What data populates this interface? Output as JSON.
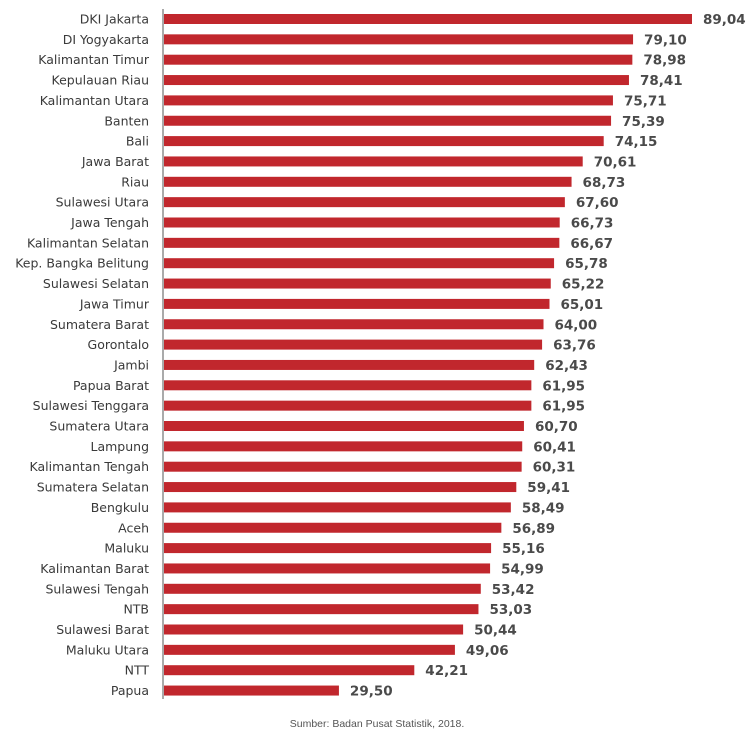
{
  "chart_data": {
    "type": "bar",
    "orientation": "horizontal",
    "categories": [
      "DKI Jakarta",
      "DI Yogyakarta",
      "Kalimantan Timur",
      "Kepulauan Riau",
      "Kalimantan Utara",
      "Banten",
      "Bali",
      "Jawa Barat",
      "Riau",
      "Sulawesi Utara",
      "Jawa Tengah",
      "Kalimantan Selatan",
      "Kep. Bangka Belitung",
      "Sulawesi Selatan",
      "Jawa Timur",
      "Sumatera Barat",
      "Gorontalo",
      "Jambi",
      "Papua Barat",
      "Sulawesi Tenggara",
      "Sumatera Utara",
      "Lampung",
      "Kalimantan Tengah",
      "Sumatera Selatan",
      "Bengkulu",
      "Aceh",
      "Maluku",
      "Kalimantan Barat",
      "Sulawesi Tengah",
      "NTB",
      "Sulawesi Barat",
      "Maluku Utara",
      "NTT",
      "Papua"
    ],
    "values": [
      89.04,
      79.1,
      78.98,
      78.41,
      75.71,
      75.39,
      74.15,
      70.61,
      68.73,
      67.6,
      66.73,
      66.67,
      65.78,
      65.22,
      65.01,
      64.0,
      63.76,
      62.43,
      61.95,
      61.95,
      60.7,
      60.41,
      60.31,
      59.41,
      58.49,
      56.89,
      55.16,
      54.99,
      53.42,
      53.03,
      50.44,
      49.06,
      42.21,
      29.5
    ],
    "value_labels": [
      "89,04",
      "79,10",
      "78,98",
      "78,41",
      "75,71",
      "75,39",
      "74,15",
      "70,61",
      "68,73",
      "67,60",
      "66,73",
      "66,67",
      "65,78",
      "65,22",
      "65,01",
      "64,00",
      "63,76",
      "62,43",
      "61,95",
      "61,95",
      "60,70",
      "60,41",
      "60,31",
      "59,41",
      "58,49",
      "56,89",
      "55,16",
      "54,99",
      "53,42",
      "53,03",
      "50,44",
      "49,06",
      "42,21",
      "29,50"
    ],
    "bar_color": "#c1272d",
    "axis_color": "#555555",
    "xlim": [
      0,
      89.04
    ],
    "grid": false,
    "source": "Sumber: Badan Pusat Statistik, 2018."
  }
}
